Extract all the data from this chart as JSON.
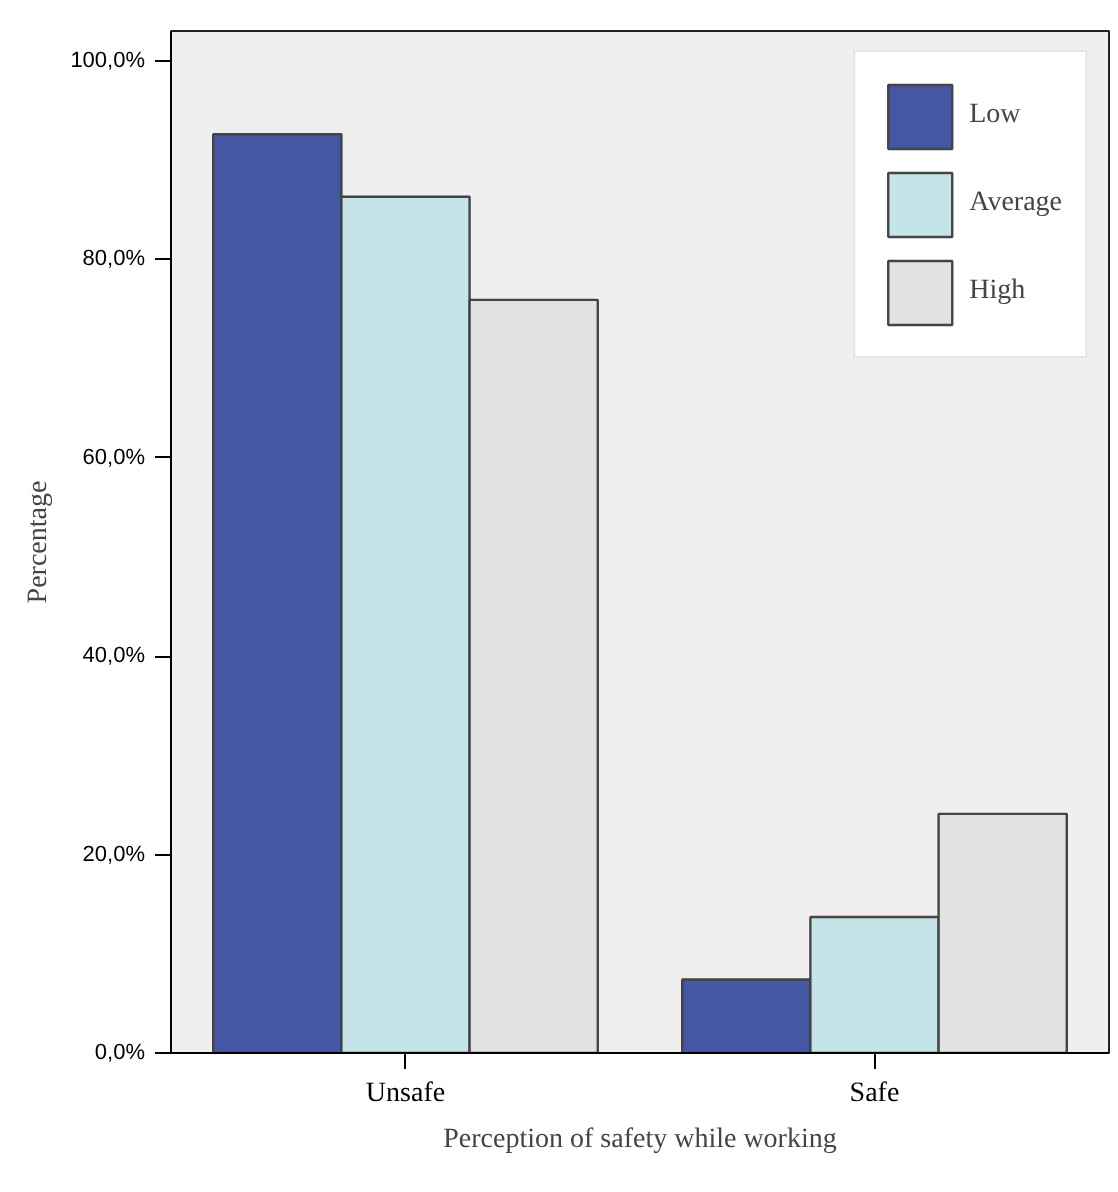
{
  "chart_data": {
    "type": "bar",
    "xlabel": "Perception of safety while working",
    "ylabel": "Percentage",
    "categories": [
      "Unsafe",
      "Safe"
    ],
    "series": [
      {
        "name": "Low",
        "color": "#4456a4",
        "values": [
          92.6,
          7.4
        ]
      },
      {
        "name": "Average",
        "color": "#c4e4e7",
        "values": [
          86.3,
          13.7
        ]
      },
      {
        "name": "High",
        "color": "#e2e2e2",
        "values": [
          75.9,
          24.1
        ]
      }
    ],
    "ylim": [
      0,
      103
    ],
    "yticks": [
      {
        "value": 0,
        "label": "0,0%"
      },
      {
        "value": 20,
        "label": "20,0%"
      },
      {
        "value": 40,
        "label": "40,0%"
      },
      {
        "value": 60,
        "label": "60,0%"
      },
      {
        "value": 80,
        "label": "80,0%"
      },
      {
        "value": 100,
        "label": "100,0%"
      }
    ],
    "grid": false,
    "legend": "top right"
  }
}
